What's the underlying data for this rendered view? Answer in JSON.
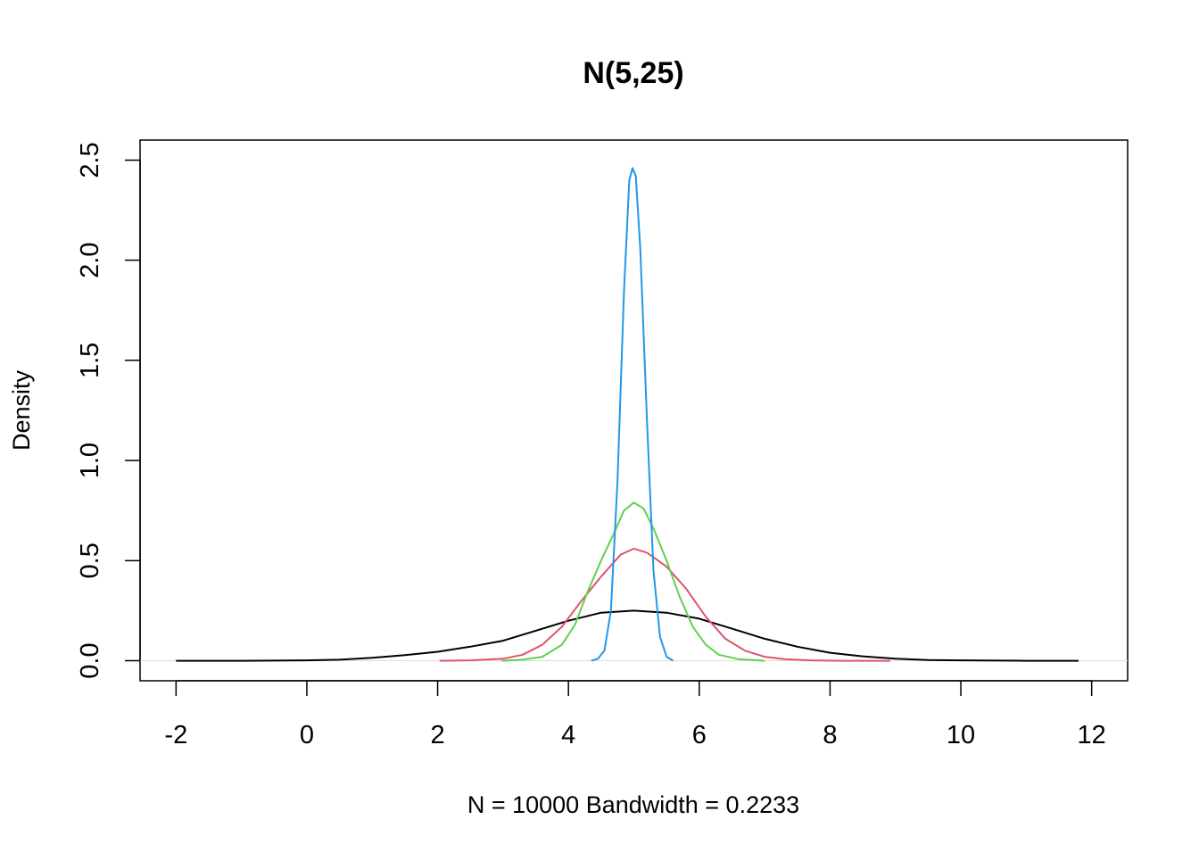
{
  "chart_data": {
    "type": "line",
    "title": "N(5,25)",
    "xlabel": "N = 10000   Bandwidth = 0.2233",
    "ylabel": "Density",
    "xlim": [
      -2.55,
      12.55
    ],
    "ylim": [
      -0.1,
      2.6
    ],
    "x_ticks": [
      -2,
      0,
      2,
      4,
      6,
      8,
      10,
      12
    ],
    "x_tick_labels": [
      "-2",
      "0",
      "2",
      "4",
      "6",
      "8",
      "10",
      "12"
    ],
    "y_ticks": [
      0.0,
      0.5,
      1.0,
      1.5,
      2.0,
      2.5
    ],
    "y_tick_labels": [
      "0.0",
      "0.5",
      "1.0",
      "1.5",
      "2.0",
      "2.5"
    ],
    "grid": false,
    "legend": "none",
    "zero_line_color": "#dddddd",
    "series": [
      {
        "color": "#000000",
        "points": [
          [
            -2.0,
            0.0
          ],
          [
            -1.0,
            0.0
          ],
          [
            0.0,
            0.002
          ],
          [
            0.5,
            0.005
          ],
          [
            1.0,
            0.015
          ],
          [
            1.5,
            0.028
          ],
          [
            2.0,
            0.045
          ],
          [
            2.5,
            0.07
          ],
          [
            3.0,
            0.1
          ],
          [
            3.5,
            0.15
          ],
          [
            4.0,
            0.2
          ],
          [
            4.5,
            0.24
          ],
          [
            5.0,
            0.25
          ],
          [
            5.5,
            0.24
          ],
          [
            6.0,
            0.21
          ],
          [
            6.5,
            0.16
          ],
          [
            7.0,
            0.11
          ],
          [
            7.5,
            0.07
          ],
          [
            8.0,
            0.04
          ],
          [
            8.5,
            0.022
          ],
          [
            9.0,
            0.01
          ],
          [
            9.5,
            0.004
          ],
          [
            10.0,
            0.002
          ],
          [
            11.0,
            0.0
          ],
          [
            11.8,
            0.0
          ]
        ]
      },
      {
        "color": "#df536b",
        "points": [
          [
            2.03,
            0.0
          ],
          [
            2.5,
            0.002
          ],
          [
            3.0,
            0.01
          ],
          [
            3.3,
            0.03
          ],
          [
            3.6,
            0.08
          ],
          [
            3.9,
            0.17
          ],
          [
            4.2,
            0.3
          ],
          [
            4.5,
            0.42
          ],
          [
            4.8,
            0.53
          ],
          [
            5.0,
            0.56
          ],
          [
            5.2,
            0.54
          ],
          [
            5.5,
            0.47
          ],
          [
            5.8,
            0.36
          ],
          [
            6.1,
            0.22
          ],
          [
            6.4,
            0.11
          ],
          [
            6.7,
            0.05
          ],
          [
            7.0,
            0.02
          ],
          [
            7.3,
            0.008
          ],
          [
            7.7,
            0.002
          ],
          [
            8.2,
            0.0
          ],
          [
            8.92,
            0.0
          ]
        ]
      },
      {
        "color": "#61d04f",
        "points": [
          [
            2.98,
            0.0
          ],
          [
            3.3,
            0.005
          ],
          [
            3.6,
            0.02
          ],
          [
            3.9,
            0.08
          ],
          [
            4.1,
            0.18
          ],
          [
            4.3,
            0.35
          ],
          [
            4.5,
            0.5
          ],
          [
            4.7,
            0.64
          ],
          [
            4.85,
            0.75
          ],
          [
            5.0,
            0.79
          ],
          [
            5.15,
            0.76
          ],
          [
            5.3,
            0.66
          ],
          [
            5.5,
            0.5
          ],
          [
            5.7,
            0.32
          ],
          [
            5.9,
            0.17
          ],
          [
            6.1,
            0.08
          ],
          [
            6.3,
            0.03
          ],
          [
            6.6,
            0.008
          ],
          [
            7.0,
            0.0
          ]
        ]
      },
      {
        "color": "#2297e6",
        "points": [
          [
            4.35,
            0.0
          ],
          [
            4.45,
            0.01
          ],
          [
            4.55,
            0.05
          ],
          [
            4.65,
            0.25
          ],
          [
            4.75,
            0.9
          ],
          [
            4.85,
            1.85
          ],
          [
            4.93,
            2.4
          ],
          [
            4.98,
            2.46
          ],
          [
            5.03,
            2.42
          ],
          [
            5.1,
            2.05
          ],
          [
            5.2,
            1.2
          ],
          [
            5.3,
            0.45
          ],
          [
            5.4,
            0.12
          ],
          [
            5.5,
            0.02
          ],
          [
            5.6,
            0.0
          ]
        ]
      }
    ]
  }
}
